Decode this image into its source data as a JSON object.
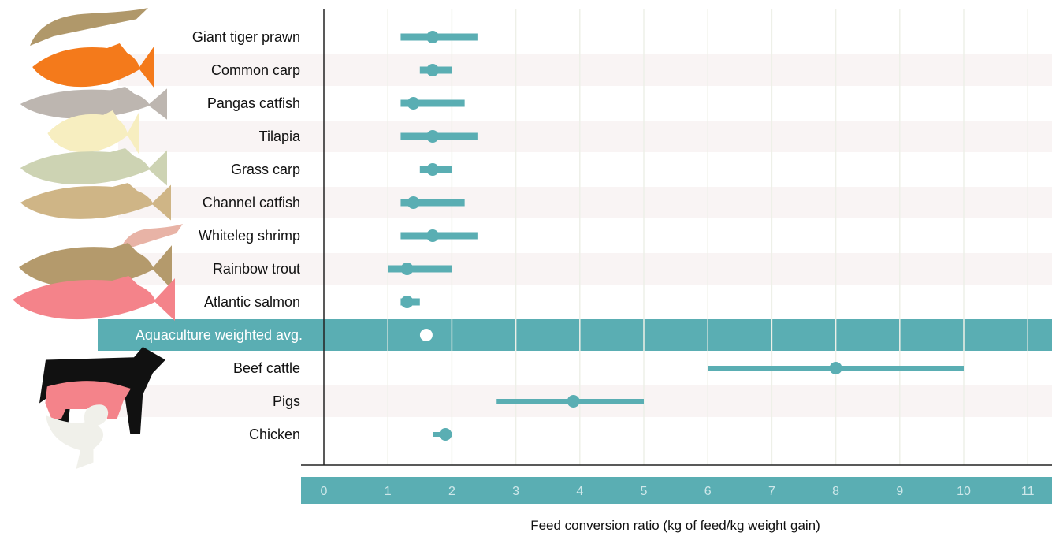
{
  "colors": {
    "accent": "#5aaeb3",
    "band_alt": "#f9f4f4",
    "gridline": "#eef0e8",
    "axis_line": "#222222",
    "label_text": "#111111",
    "highlight_text": "#ffffff",
    "highlight_point": "#ffffff",
    "tick_text": "#cfe8ea"
  },
  "icons": [
    {
      "name": "giant-tiger-prawn-icon",
      "color": "#b0986a"
    },
    {
      "name": "common-carp-icon",
      "color": "#f47a1b"
    },
    {
      "name": "pangas-catfish-icon",
      "color": "#bdb6b0"
    },
    {
      "name": "tilapia-icon",
      "color": "#f7eec0"
    },
    {
      "name": "grass-carp-icon",
      "color": "#cdd3b3"
    },
    {
      "name": "channel-catfish-icon",
      "color": "#cfb586"
    },
    {
      "name": "whiteleg-shrimp-icon",
      "color": "#e8b3a6"
    },
    {
      "name": "rainbow-trout-icon",
      "color": "#b49a6c"
    },
    {
      "name": "atlantic-salmon-icon",
      "color": "#f4838a"
    },
    {
      "name": "beef-cattle-icon",
      "color": "#111111"
    },
    {
      "name": "pig-icon",
      "color": "#f4838a"
    },
    {
      "name": "chicken-icon",
      "color": "#f0f0ea"
    }
  ],
  "chart_data": {
    "type": "range-dot",
    "title": "",
    "xlabel": "Feed conversion ratio (kg of feed/kg weight gain)",
    "ylabel": "",
    "xlim": [
      0,
      11.5
    ],
    "x_ticks": [
      0,
      1,
      2,
      3,
      4,
      5,
      6,
      7,
      8,
      9,
      10,
      11
    ],
    "x_tick_labels": [
      "0",
      "1",
      "2",
      "3",
      "4",
      "5",
      "6",
      "7",
      "8",
      "9",
      "10",
      "11"
    ],
    "grid": true,
    "categories": [
      "Giant tiger prawn",
      "Common carp",
      "Pangas catfish",
      "Tilapia",
      "Grass carp",
      "Channel catfish",
      "Whiteleg shrimp",
      "Rainbow trout",
      "Atlantic salmon",
      "Aquaculture weighted avg.",
      "Beef cattle",
      "Pigs",
      "Chicken"
    ],
    "highlight_category": "Aquaculture weighted avg.",
    "series": [
      {
        "values": [
          1.7,
          1.7,
          1.4,
          1.7,
          1.7,
          1.4,
          1.7,
          1.3,
          1.3,
          1.6,
          8.0,
          3.9,
          1.9
        ],
        "low": [
          1.2,
          1.5,
          1.2,
          1.2,
          1.5,
          1.2,
          1.2,
          1.0,
          1.2,
          null,
          6.0,
          2.7,
          1.7
        ],
        "high": [
          2.4,
          2.0,
          2.2,
          2.4,
          2.0,
          2.2,
          2.4,
          2.0,
          1.5,
          null,
          10.0,
          5.0,
          2.0
        ]
      }
    ]
  }
}
